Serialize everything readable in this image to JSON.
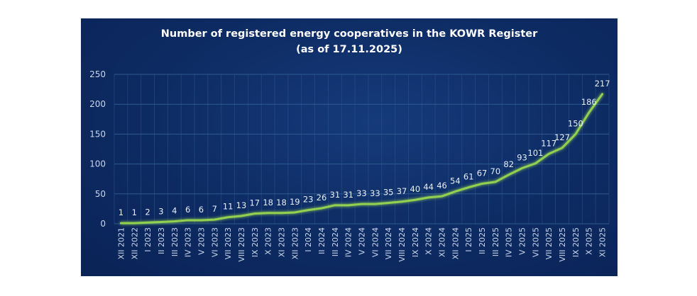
{
  "chart_data": {
    "type": "line",
    "title": "Number of registered energy cooperatives in the KOWR Register",
    "subtitle": "(as of 17.11.2025)",
    "xlabel": "",
    "ylabel": "",
    "ylim": [
      0,
      250
    ],
    "yticks": [
      "0",
      "50",
      "100",
      "150",
      "200",
      "250"
    ],
    "grid": true,
    "categories": [
      "XII 2021",
      "XII 2022",
      "I 2023",
      "II 2023",
      "III 2023",
      "IV 2023",
      "V 2023",
      "VI 2023",
      "VII 2023",
      "VIII 2023",
      "IX 2023",
      "X 2023",
      "XI 2023",
      "XII 2023",
      "I 2024",
      "II 2024",
      "III 2024",
      "IV 2024",
      "V 2024",
      "VI 2024",
      "VII 2024",
      "VIII 2024",
      "IX 2024",
      "X 2024",
      "XI 2024",
      "XII 2024",
      "I 2025",
      "II 2025",
      "III 2025",
      "IV 2025",
      "V 2025",
      "VI 2025",
      "VII 2025",
      "VIII 2025",
      "IX 2025",
      "X 2025",
      "XI 2025"
    ],
    "series": [
      {
        "name": "Registered energy cooperatives",
        "values": [
          1,
          1,
          2,
          3,
          4,
          6,
          6,
          7,
          11,
          13,
          17,
          18,
          18,
          19,
          23,
          26,
          31,
          31,
          33,
          33,
          35,
          37,
          40,
          44,
          46,
          54,
          61,
          67,
          70,
          82,
          93,
          101,
          117,
          127,
          150,
          186,
          217
        ]
      }
    ],
    "colors": {
      "line": "#92d050",
      "grid": "#2f5a8f",
      "text": "#e8eef8",
      "axis": "#c9d6ea"
    }
  }
}
